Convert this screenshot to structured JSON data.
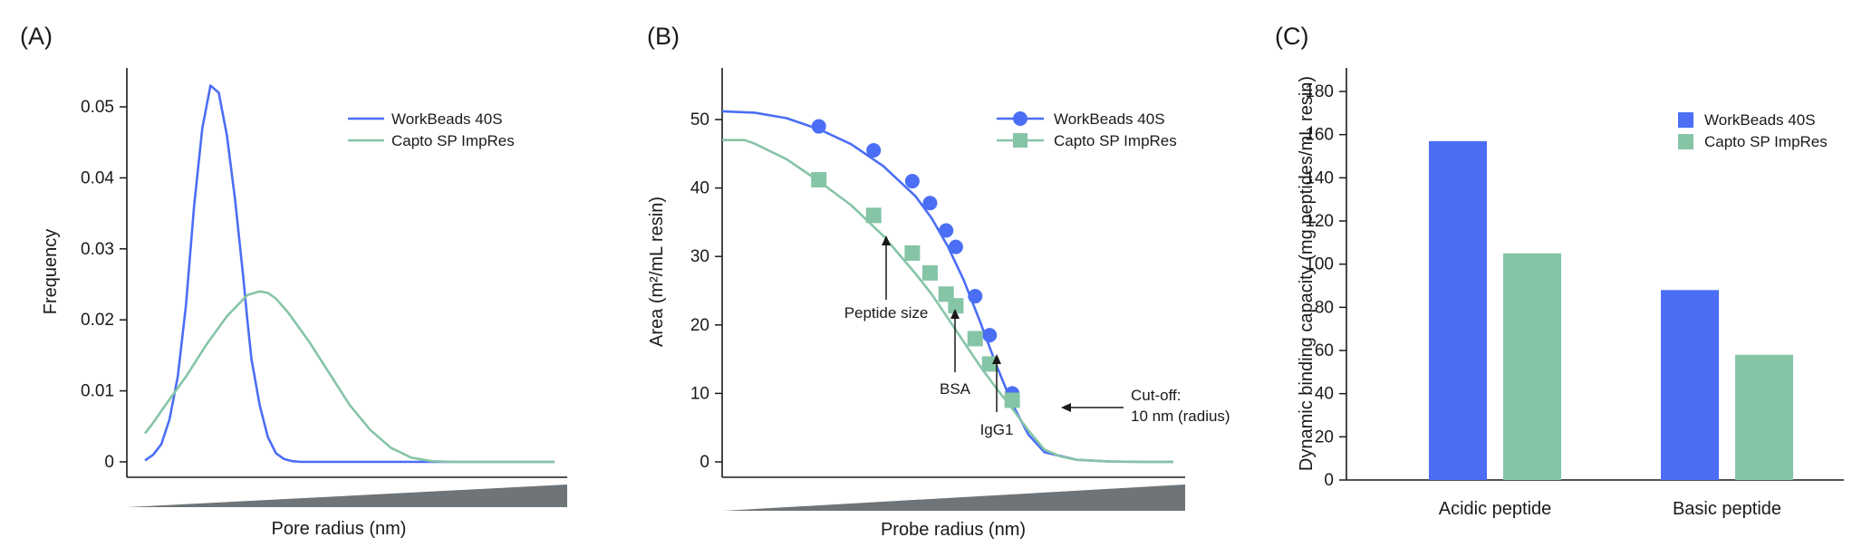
{
  "colors": {
    "workbeads": "#4b6ef5",
    "capto": "#86c4a6",
    "axis": "#1a1a1a",
    "wedge": "#6e7478"
  },
  "chart_data": [
    {
      "panel": "(A)",
      "type": "line",
      "xlabel": "Pore radius (nm)",
      "ylabel": "Frequency",
      "ylim": [
        0,
        0.055
      ],
      "yticks": [
        "0",
        "0.01",
        "0.02",
        "0.03",
        "0.04",
        "0.05"
      ],
      "ytick_values": [
        0,
        0.01,
        0.02,
        0.03,
        0.04,
        0.05
      ],
      "x_axis": "unlabeled (increasing pore radius, shown by wedge)",
      "legend_position": "top-right",
      "series": [
        {
          "name": "WorkBeads 40S",
          "color": "#4b6ef5",
          "x": [
            0,
            0.2,
            0.4,
            0.6,
            0.8,
            1,
            1.1,
            1.2,
            1.4,
            1.6,
            1.8,
            2,
            2.2,
            2.4,
            2.5,
            2.6,
            2.8,
            3,
            3.2,
            3.4,
            3.6,
            3.8,
            4,
            4.5,
            5,
            6,
            8,
            10
          ],
          "y": [
            0.0002,
            0.001,
            0.0025,
            0.006,
            0.012,
            0.022,
            0.029,
            0.036,
            0.047,
            0.053,
            0.052,
            0.046,
            0.037,
            0.026,
            0.02,
            0.0145,
            0.008,
            0.0035,
            0.0012,
            0.0004,
            0.0001,
            0,
            0,
            0,
            0,
            0,
            0,
            0
          ]
        },
        {
          "name": "Capto SP ImpRes",
          "color": "#86c4a6",
          "x": [
            0,
            0.2,
            0.5,
            1,
            1.5,
            2,
            2.5,
            2.8,
            3,
            3.2,
            3.5,
            4,
            4.5,
            5,
            5.5,
            6,
            6.5,
            7,
            7.5,
            8,
            9,
            10
          ],
          "y": [
            0.004,
            0.0055,
            0.008,
            0.012,
            0.0165,
            0.0205,
            0.0235,
            0.024,
            0.0238,
            0.023,
            0.021,
            0.017,
            0.0125,
            0.008,
            0.0045,
            0.002,
            0.0006,
            0.0001,
            0,
            0,
            0,
            0
          ]
        }
      ]
    },
    {
      "panel": "(B)",
      "type": "line",
      "xlabel": "Probe radius (nm)",
      "ylabel": "Area (m²/mL resin)",
      "ylim": [
        0,
        55
      ],
      "yticks": [
        "0",
        "10",
        "20",
        "30",
        "40",
        "50"
      ],
      "ytick_values": [
        0,
        10,
        20,
        30,
        40,
        50
      ],
      "x_axis": "unlabeled (increasing probe radius, shown by wedge)",
      "legend_position": "top-right",
      "series": [
        {
          "name": "WorkBeads 40S",
          "color": "#4b6ef5",
          "marker": "circle",
          "curve_x": [
            0,
            1,
            2,
            3,
            4,
            5,
            6,
            6.5,
            7,
            7.5,
            8,
            8.5,
            9,
            9.5,
            10,
            11,
            12,
            13,
            14
          ],
          "curve_y": [
            51.2,
            51.0,
            50.2,
            48.6,
            46.4,
            43.2,
            38.8,
            35.6,
            31.5,
            26.5,
            20.5,
            14.2,
            8.5,
            4.0,
            1.4,
            0.3,
            0.05,
            0,
            0
          ],
          "points_x": [
            3.0,
            4.7,
            5.9,
            6.45,
            6.95,
            7.25,
            7.85,
            8.3,
            9.0
          ],
          "points_y": [
            49.0,
            45.5,
            41.0,
            37.8,
            33.8,
            31.4,
            24.2,
            18.5,
            10.0
          ]
        },
        {
          "name": "Capto SP ImpRes",
          "color": "#86c4a6",
          "marker": "square",
          "curve_x": [
            0,
            0.7,
            1,
            2,
            3,
            4,
            5,
            6,
            6.5,
            7,
            7.5,
            8,
            8.5,
            9,
            9.5,
            10,
            10.5,
            11,
            12,
            13,
            14
          ],
          "curve_y": [
            47.0,
            47.0,
            46.5,
            44.2,
            41.0,
            37.5,
            33.0,
            27.5,
            24.5,
            21.0,
            17.5,
            14.0,
            10.8,
            7.8,
            4.6,
            1.8,
            0.8,
            0.3,
            0.05,
            0,
            0
          ],
          "points_x": [
            3.0,
            4.7,
            5.9,
            6.45,
            6.95,
            7.25,
            7.85,
            8.3,
            9.0
          ],
          "points_y": [
            41.2,
            36.0,
            30.5,
            27.6,
            24.5,
            22.8,
            18.0,
            14.3,
            9.0
          ]
        }
      ],
      "annotations": [
        {
          "text": "Peptide size",
          "x": 4.7
        },
        {
          "text": "BSA",
          "x": 6.95
        },
        {
          "text": "IgG1",
          "x": 7.85
        },
        {
          "lines": [
            "Cut-off:",
            "10 nm (radius)"
          ],
          "x": 9.0,
          "y": 8.0
        }
      ]
    },
    {
      "panel": "(C)",
      "type": "bar",
      "ylabel": "Dynamic binding capacity (mg peptides/mL resin)",
      "ylim": [
        0,
        190
      ],
      "yticks": [
        "0",
        "20",
        "40",
        "60",
        "80",
        "100",
        "120",
        "140",
        "160",
        "180"
      ],
      "ytick_values": [
        0,
        20,
        40,
        60,
        80,
        100,
        120,
        140,
        160,
        180
      ],
      "categories": [
        "Acidic peptide",
        "Basic peptide"
      ],
      "legend_position": "top-right",
      "series": [
        {
          "name": "WorkBeads 40S",
          "color": "#4b6ef5",
          "values": [
            157,
            88
          ]
        },
        {
          "name": "Capto SP ImpRes",
          "color": "#86c4a6",
          "values": [
            105,
            58
          ]
        }
      ]
    }
  ]
}
